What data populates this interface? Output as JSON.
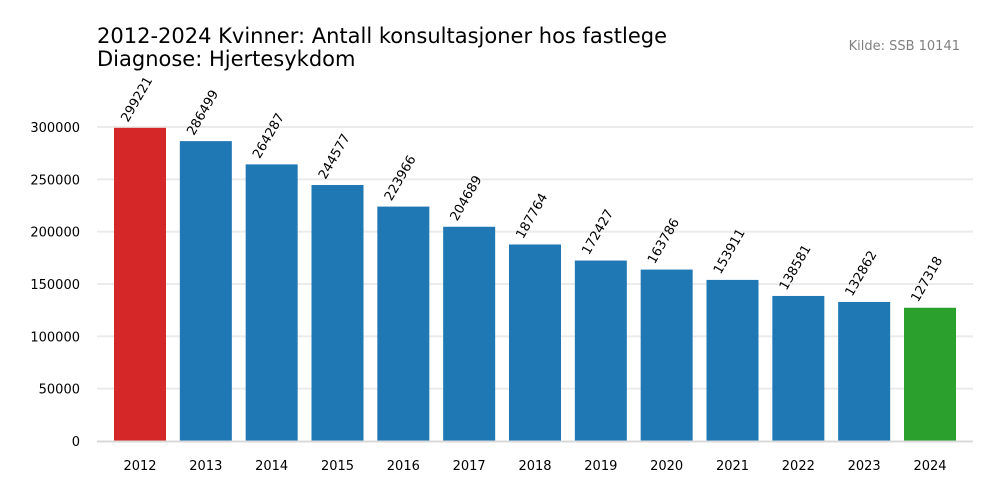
{
  "chart_data": {
    "type": "bar",
    "title": "2012-2024 Kvinner: Antall konsultasjoner hos fastlege",
    "subtitle": "Diagnose: Hjertesykdom",
    "source": "Kilde: SSB 10141",
    "xlabel": "",
    "ylabel": "",
    "ylim": [
      0,
      300000
    ],
    "yticks": [
      0,
      50000,
      100000,
      150000,
      200000,
      250000,
      300000
    ],
    "grid": true,
    "categories": [
      "2012",
      "2013",
      "2014",
      "2015",
      "2016",
      "2017",
      "2018",
      "2019",
      "2020",
      "2021",
      "2022",
      "2023",
      "2024"
    ],
    "values": [
      299221,
      286499,
      264287,
      244577,
      223966,
      204689,
      187764,
      172427,
      163786,
      153911,
      138581,
      132862,
      127318
    ],
    "colors": {
      "first": "#d62728",
      "default": "#1f77b4",
      "last": "#2ca02c",
      "grid": "#ebebeb",
      "axis": "#d9d9d9",
      "source": "#808080"
    }
  }
}
